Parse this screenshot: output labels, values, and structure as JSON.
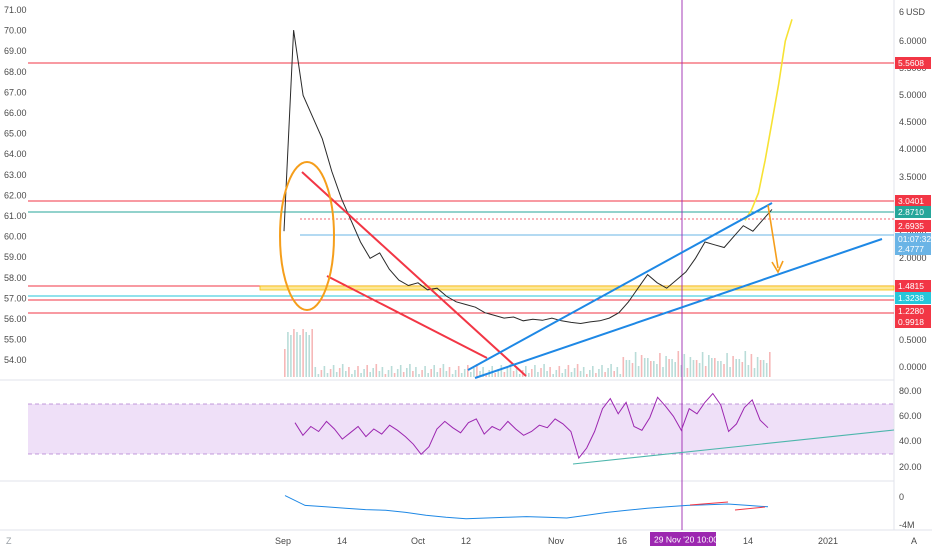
{
  "chart_data": [
    {
      "type": "line",
      "panel": "price",
      "left_axis_ticks": [
        "71.00",
        "70.00",
        "69.00",
        "68.00",
        "67.00",
        "66.00",
        "65.00",
        "64.00",
        "63.00",
        "62.00",
        "61.00",
        "60.00",
        "59.00",
        "58.00",
        "57.00",
        "56.00",
        "55.00",
        "54.00"
      ],
      "right_axis_ticks": [
        "6",
        "6.0000",
        "5.5000",
        "5.0000",
        "4.5000",
        "4.0000",
        "3.5000",
        "3.0000",
        "2.5000",
        "2.0000",
        "1.5000",
        "1.0000",
        "0.5000",
        "0.0000"
      ],
      "currency_label": "USD",
      "price_tags": [
        {
          "label": "5.5608",
          "color": "#f23645"
        },
        {
          "label": "3.0401",
          "color": "#f23645"
        },
        {
          "label": "2.8710",
          "color": "#26a69a"
        },
        {
          "label": "2.6935",
          "color": "#f23645"
        },
        {
          "label": "2.4777",
          "color": "#6ab4e6"
        },
        {
          "label": "01:07:32",
          "color": "#6ab4e6"
        },
        {
          "label": "1.4815",
          "color": "#f23645"
        },
        {
          "label": "1.3238",
          "color": "#26c6da"
        },
        {
          "label": "1.2280",
          "color": "#f23645"
        },
        {
          "label": "0.9918",
          "color": "#f23645"
        }
      ],
      "x_axis_ticks": [
        "Sep",
        "14",
        "Oct",
        "12",
        "Nov",
        "16",
        "14",
        "2021"
      ],
      "cursor_date_label": "29 Nov '20  10:00",
      "series": [
        {
          "values": [
            2.5,
            6.2,
            5.0,
            4.6,
            4.2,
            3.6,
            3.1,
            2.7,
            2.3,
            2.0,
            2.1,
            1.8,
            1.6,
            1.5,
            1.55,
            1.42,
            1.45,
            1.3,
            1.2,
            1.15,
            1.1,
            1.0,
            0.95,
            0.9,
            0.92,
            0.85,
            0.88,
            0.86,
            0.9,
            0.85,
            0.82,
            0.8,
            0.83,
            0.85,
            0.9,
            1.0,
            1.2,
            1.45,
            1.7,
            1.55,
            1.45,
            1.6,
            1.75,
            2.0,
            2.3,
            2.25,
            2.2,
            2.4,
            2.6,
            2.5,
            2.7,
            2.9
          ],
          "color": "#2a2a2a"
        },
        {
          "values": [
            2.7,
            2.9,
            3.2,
            3.8,
            4.5,
            5.2,
            6.0,
            6.4
          ],
          "color": "#f7e233"
        }
      ]
    },
    {
      "type": "line",
      "panel": "RSI",
      "y_ticks": [
        "80.00",
        "60.00",
        "40.00",
        "20.00"
      ],
      "band": [
        30,
        70
      ],
      "series": [
        {
          "values": [
            55,
            45,
            52,
            48,
            56,
            50,
            42,
            47,
            52,
            44,
            50,
            46,
            53,
            49,
            44,
            38,
            30,
            36,
            50,
            56,
            51,
            47,
            55,
            58,
            46,
            52,
            49,
            56,
            50,
            45,
            48,
            53,
            51,
            58,
            54,
            48,
            27,
            35,
            48,
            66,
            74,
            62,
            71,
            52,
            49,
            59,
            75,
            68,
            60,
            49,
            66,
            62,
            71,
            78,
            69,
            48,
            54,
            67,
            73,
            57,
            51
          ],
          "color": "#9c27b0"
        }
      ]
    },
    {
      "type": "line",
      "panel": "volume oscillator",
      "y_ticks": [
        "0",
        "-4M"
      ],
      "series": [
        {
          "values": [
            0.2,
            -1.2,
            -1.4,
            -1.6,
            -1.8,
            -1.9,
            -2.2,
            -2.6,
            -2.9,
            -3.1,
            -3.0,
            -2.9,
            -2.8,
            -2.9,
            -3.0,
            -2.6,
            -2.2,
            -1.9,
            -1.6,
            -1.4,
            -1.2,
            -1.1,
            -1.0,
            -1.2,
            -1.4
          ],
          "color": "#1e88e5"
        }
      ]
    }
  ],
  "ui": {
    "settings_letter": "A",
    "tz_letter": "Z"
  }
}
